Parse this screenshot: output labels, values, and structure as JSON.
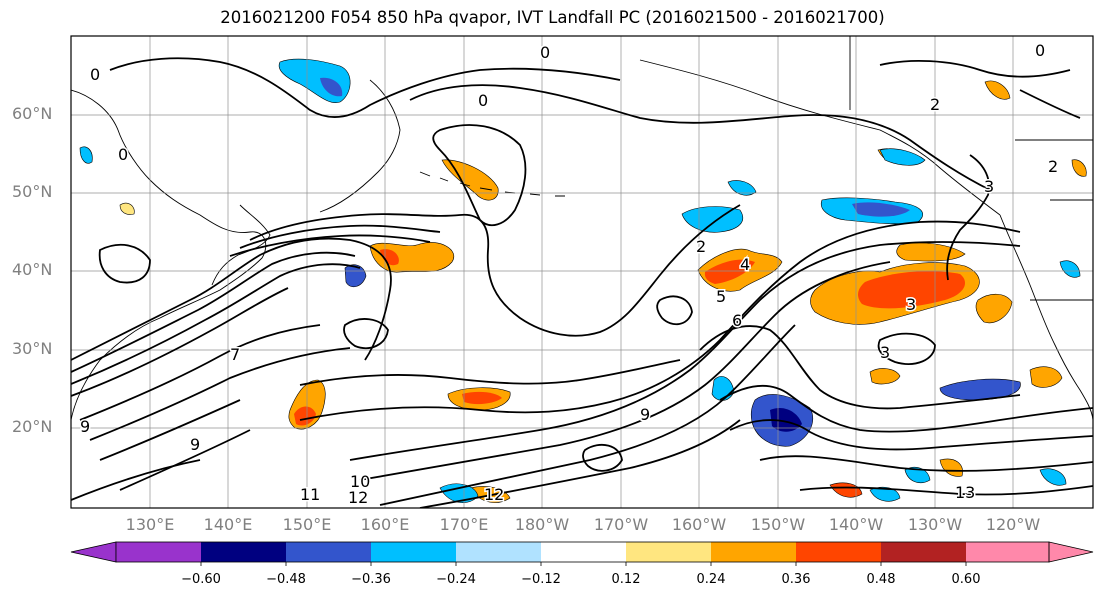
{
  "title": "2016021200 F054 850 hPa qvapor, IVT Landfall PC (2016021500 - 2016021700)",
  "lat_labels": [
    "60°N",
    "50°N",
    "40°N",
    "30°N",
    "20°N"
  ],
  "lon_labels": [
    "130°E",
    "140°E",
    "150°E",
    "160°E",
    "170°E",
    "180°W",
    "170°W",
    "160°W",
    "150°W",
    "140°W",
    "130°W",
    "120°W"
  ],
  "colorbar": {
    "ticks": [
      "−0.60",
      "−0.48",
      "−0.36",
      "−0.24",
      "−0.12",
      "0.12",
      "0.24",
      "0.36",
      "0.48",
      "0.60"
    ],
    "colors": [
      "#9933cc",
      "#000080",
      "#3355cc",
      "#00bfff",
      "#b0e2ff",
      "#ffffff",
      "#ffe680",
      "#ffa500",
      "#ff4500",
      "#b22222",
      "#ff88aa"
    ]
  },
  "contour_labels": [
    "0",
    "0",
    "0",
    "0",
    "0",
    "2",
    "2",
    "2",
    "3",
    "3",
    "3",
    "4",
    "5",
    "6",
    "7",
    "9",
    "9",
    "9",
    "10",
    "11",
    "12",
    "12",
    "13"
  ],
  "colors": {
    "grid": "#909090",
    "contour": "#000000",
    "coast": "#000000"
  }
}
